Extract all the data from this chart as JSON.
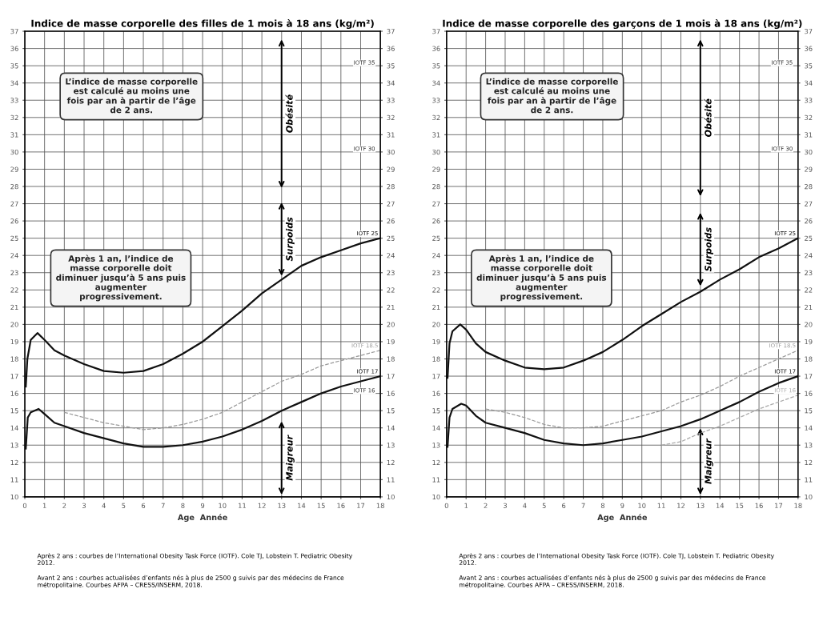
{
  "chart_data": [
    {
      "type": "line",
      "title": "Indice de masse corporelle des filles de 1 mois à 18 ans (kg/m²)",
      "xlabel": "Age  Année",
      "xlim": [
        0,
        18
      ],
      "xticks": [
        0,
        1,
        2,
        3,
        4,
        5,
        6,
        7,
        8,
        9,
        10,
        11,
        12,
        13,
        14,
        15,
        16,
        17,
        18
      ],
      "ylim": [
        10,
        37
      ],
      "yticks": [
        10,
        11,
        12,
        13,
        14,
        15,
        16,
        17,
        18,
        19,
        20,
        21,
        22,
        23,
        24,
        25,
        26,
        27,
        28,
        29,
        30,
        31,
        32,
        33,
        34,
        35,
        36,
        37
      ],
      "y2lim": [
        10,
        37
      ],
      "y2ticks": [
        10,
        11,
        12,
        13,
        14,
        15,
        16,
        17,
        18,
        19,
        20,
        21,
        22,
        23,
        24,
        25,
        26,
        27,
        28,
        29,
        30,
        31,
        32,
        33,
        34,
        35,
        36,
        37
      ],
      "grid": true,
      "legend": false,
      "series": [
        {
          "name": "IOTF 25",
          "color": "#111111",
          "line_style": "solid",
          "x": [
            0.05,
            0.13,
            0.3,
            0.64,
            1,
            1.5,
            2,
            3,
            4,
            5,
            6,
            7,
            8,
            9,
            10,
            11,
            12,
            13,
            14,
            15,
            16,
            17,
            18
          ],
          "values": [
            16.4,
            18.0,
            19.1,
            19.5,
            19.1,
            18.5,
            18.2,
            17.7,
            17.3,
            17.2,
            17.3,
            17.7,
            18.3,
            19.0,
            19.9,
            20.8,
            21.8,
            22.6,
            23.4,
            23.9,
            24.3,
            24.7,
            25.0
          ]
        },
        {
          "name": "IOTF 17",
          "color": "#111111",
          "line_style": "solid",
          "x": [
            0.05,
            0.15,
            0.3,
            0.7,
            1,
            1.5,
            2,
            3,
            4,
            5,
            6,
            7,
            8,
            9,
            10,
            11,
            12,
            13,
            14,
            15,
            16,
            17,
            18
          ],
          "values": [
            12.8,
            14.6,
            14.9,
            15.1,
            14.8,
            14.3,
            14.1,
            13.7,
            13.4,
            13.1,
            12.9,
            12.9,
            13.0,
            13.2,
            13.5,
            13.9,
            14.4,
            15.0,
            15.5,
            16.0,
            16.4,
            16.7,
            17.0
          ]
        },
        {
          "name": "IOTF 18.5",
          "color": "#999999",
          "line_style": "dashed",
          "x": [
            2,
            3,
            4,
            5,
            6,
            7,
            8,
            9,
            10,
            11,
            12,
            13,
            14,
            15,
            16,
            17,
            18
          ],
          "values": [
            14.9,
            14.6,
            14.3,
            14.1,
            13.9,
            14.0,
            14.2,
            14.5,
            14.9,
            15.5,
            16.1,
            16.7,
            17.1,
            17.6,
            17.9,
            18.2,
            18.5
          ]
        }
      ],
      "annotations": [
        "L’indice de masse corporelle est calculé au moins une fois par an à partir de l’âge de 2 ans.",
        "Après 1 an, l’indice de masse corporelle doit diminuer jusqu’à 5 ans puis augmenter progressivement.",
        "Obésité",
        "Surpoids",
        "Maigreur",
        "IOTF 35",
        "IOTF 30",
        "IOTF 16",
        "Après 2 ans : courbes de l’International Obesity Task Force (IOTF). Cole TJ, Lobstein T. Pediatric Obesity 2012.",
        "Avant 2 ans : courbes actualisées d’enfants nés à plus de 2500 g suivis par des médecins de France métropolitaine. Courbes AFPA – CRESS/INSERM, 2018."
      ]
    },
    {
      "type": "line",
      "title": "Indice de masse corporelle des garçons de 1 mois à 18 ans (kg/m²)",
      "xlabel": "Age  Année",
      "xlim": [
        0,
        18
      ],
      "xticks": [
        0,
        1,
        2,
        3,
        4,
        5,
        6,
        7,
        8,
        9,
        10,
        11,
        12,
        13,
        14,
        15,
        16,
        17,
        18
      ],
      "ylim": [
        10,
        37
      ],
      "yticks": [
        10,
        11,
        12,
        13,
        14,
        15,
        16,
        17,
        18,
        19,
        20,
        21,
        22,
        23,
        24,
        25,
        26,
        27,
        28,
        29,
        30,
        31,
        32,
        33,
        34,
        35,
        36,
        37
      ],
      "y2lim": [
        10,
        37
      ],
      "y2ticks": [
        10,
        11,
        12,
        13,
        14,
        15,
        16,
        17,
        18,
        19,
        20,
        21,
        22,
        23,
        24,
        25,
        26,
        27,
        28,
        29,
        30,
        31,
        32,
        33,
        34,
        35,
        36,
        37
      ],
      "grid": true,
      "legend": false,
      "series": [
        {
          "name": "IOTF 25",
          "color": "#111111",
          "line_style": "solid",
          "x": [
            0.05,
            0.15,
            0.3,
            0.7,
            1,
            1.5,
            2,
            3,
            4,
            5,
            6,
            7,
            8,
            9,
            10,
            11,
            12,
            13,
            14,
            15,
            16,
            17,
            18
          ],
          "values": [
            16.9,
            18.9,
            19.6,
            20.0,
            19.7,
            18.9,
            18.4,
            17.9,
            17.5,
            17.4,
            17.5,
            17.9,
            18.4,
            19.1,
            19.9,
            20.6,
            21.3,
            21.9,
            22.6,
            23.2,
            23.9,
            24.4,
            25.0
          ]
        },
        {
          "name": "IOTF 17",
          "color": "#111111",
          "line_style": "solid",
          "x": [
            0.05,
            0.15,
            0.3,
            0.75,
            1,
            1.5,
            2,
            3,
            4,
            5,
            6,
            7,
            8,
            9,
            10,
            11,
            12,
            13,
            14,
            15,
            16,
            17,
            18
          ],
          "values": [
            12.9,
            14.6,
            15.1,
            15.4,
            15.3,
            14.7,
            14.3,
            14.0,
            13.7,
            13.3,
            13.1,
            13.0,
            13.1,
            13.3,
            13.5,
            13.8,
            14.1,
            14.5,
            15.0,
            15.5,
            16.1,
            16.6,
            17.0
          ]
        },
        {
          "name": "IOTF 18.5",
          "color": "#999999",
          "line_style": "dashed",
          "x": [
            2,
            3,
            4,
            5,
            6,
            7,
            8,
            9,
            10,
            11,
            12,
            13,
            14,
            15,
            16,
            17,
            18
          ],
          "values": [
            15.1,
            14.9,
            14.6,
            14.2,
            14.0,
            14.0,
            14.1,
            14.4,
            14.7,
            15.0,
            15.5,
            15.9,
            16.4,
            17.0,
            17.5,
            18.0,
            18.5
          ]
        },
        {
          "name": "IOTF 16",
          "color": "#aaaaaa",
          "line_style": "dashed",
          "x": [
            11,
            12,
            13,
            14,
            15,
            16,
            17,
            18
          ],
          "values": [
            13.0,
            13.2,
            13.7,
            14.1,
            14.6,
            15.1,
            15.5,
            15.9
          ]
        }
      ],
      "annotations": [
        "L’indice de masse corporelle est calculé au moins une fois par an à partir de l’âge de 2 ans.",
        "Après 1 an, l’indice de masse corporelle doit diminuer jusqu’à 5 ans puis augmenter progressivement.",
        "Obésité",
        "Surpoids",
        "Maigreur",
        "IOTF 35",
        "IOTF 30",
        "Après 2 ans : courbes de l’International Obesity Task Force (IOTF). Cole TJ, Lobstein T. Pediatric Obesity 2012.",
        "Avant 2 ans : courbes actualisées d’enfants nés à plus de 2500 g suivis par des médecins de France métropolitaine. Courbes AFPA – CRESS/INSERM, 2018."
      ]
    }
  ]
}
